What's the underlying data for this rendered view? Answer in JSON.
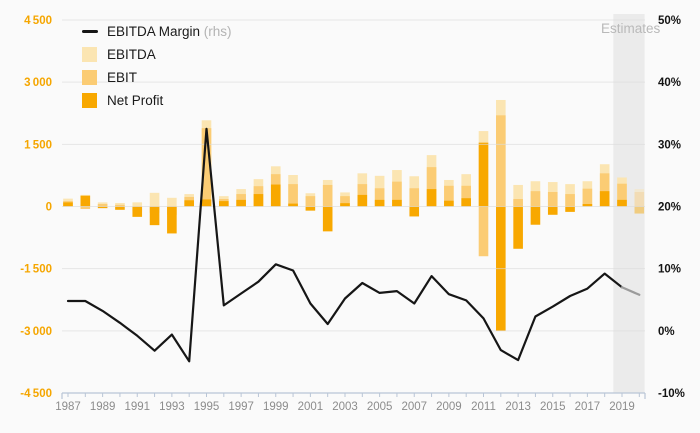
{
  "chart_data": {
    "type": "combo-bar-line",
    "title": "",
    "years": [
      1987,
      1988,
      1989,
      1990,
      1991,
      1992,
      1993,
      1994,
      1995,
      1996,
      1997,
      1998,
      1999,
      2000,
      2001,
      2002,
      2003,
      2004,
      2005,
      2006,
      2007,
      2008,
      2009,
      2010,
      2011,
      2012,
      2013,
      2014,
      2015,
      2016,
      2017,
      2018,
      2019,
      2020
    ],
    "x_tick_labels": [
      "1987",
      "1989",
      "1991",
      "1993",
      "1995",
      "1997",
      "1999",
      "2001",
      "2003",
      "2005",
      "2007",
      "2009",
      "2011",
      "2013",
      "2015",
      "2017",
      "2019"
    ],
    "left_axis": {
      "labels": [
        "4 500",
        "3 000",
        "1 500",
        "0",
        "-1 500",
        "-3 000",
        "-4 500"
      ],
      "label_values": [
        4500,
        3000,
        1500,
        0,
        -1500,
        -3000,
        -4500
      ],
      "range": [
        -4500,
        4500
      ]
    },
    "right_axis": {
      "labels": [
        "50%",
        "40%",
        "30%",
        "20%",
        "10%",
        "0%",
        "-10%"
      ],
      "label_values": [
        50,
        40,
        30,
        20,
        10,
        0,
        -10
      ],
      "range": [
        -10,
        50
      ]
    },
    "series": [
      {
        "name": "EBITDA",
        "type": "bar",
        "color": "#fbe5b2",
        "values": [
          190,
          280,
          100,
          85,
          100,
          330,
          210,
          300,
          2080,
          250,
          420,
          660,
          970,
          760,
          320,
          640,
          340,
          800,
          740,
          880,
          730,
          1240,
          640,
          780,
          1820,
          2570,
          520,
          610,
          590,
          540,
          610,
          1020,
          700,
          420
        ]
      },
      {
        "name": "EBIT",
        "type": "bar",
        "color": "#fbcc74",
        "values": [
          130,
          -60,
          60,
          40,
          -120,
          -150,
          -200,
          230,
          1890,
          180,
          300,
          490,
          780,
          540,
          250,
          520,
          250,
          540,
          440,
          600,
          440,
          950,
          500,
          500,
          -1200,
          2200,
          180,
          370,
          350,
          300,
          430,
          800,
          550,
          350
        ]
      },
      {
        "name": "Net Profit",
        "type": "bar",
        "color": "#f8a800",
        "values": [
          100,
          260,
          -40,
          -80,
          -250,
          -450,
          -650,
          150,
          170,
          130,
          160,
          300,
          530,
          70,
          -100,
          -600,
          80,
          280,
          160,
          160,
          -240,
          420,
          140,
          200,
          1540,
          -3000,
          -1020,
          -440,
          -200,
          -130,
          60,
          370,
          160,
          -170
        ]
      },
      {
        "name": "EBITDA Margin",
        "type": "line",
        "axis": "right",
        "color": "#161616",
        "estimate_color": "#9b9b9b",
        "values": [
          4.8,
          4.8,
          3.2,
          1.3,
          -0.8,
          -3.2,
          -0.6,
          -4.9,
          32.5,
          4.1,
          6.0,
          7.9,
          10.7,
          9.7,
          4.4,
          1.1,
          5.2,
          7.7,
          6.1,
          6.4,
          4.4,
          8.8,
          5.9,
          4.9,
          2.0,
          -3.1,
          -4.7,
          2.3,
          3.9,
          5.6,
          6.8,
          9.2,
          7.0,
          5.8
        ]
      }
    ],
    "estimates": {
      "label": "Estimates",
      "band_years": [
        2019,
        2020
      ],
      "faded_years": [
        2020
      ],
      "gray_line_from_year": 2019
    },
    "legend": [
      {
        "label": "EBITDA Margin",
        "suffix": "(rhs)",
        "swatch": "#161616",
        "kind": "line"
      },
      {
        "label": "EBITDA",
        "suffix": "",
        "swatch": "#fbe5b2",
        "kind": "bar"
      },
      {
        "label": "EBIT",
        "suffix": "",
        "swatch": "#fbcc74",
        "kind": "bar"
      },
      {
        "label": "Net Profit",
        "suffix": "",
        "swatch": "#f8a800",
        "kind": "bar"
      }
    ]
  },
  "styles": {
    "background": "#fafafa",
    "gridline": "#dcdcdc",
    "axis_line": "#b9c5d6",
    "band_fill": "#ebebeb",
    "left_label_color": "#f5a600",
    "right_label_color": "#141414",
    "x_label_color": "#8c8c8c"
  }
}
